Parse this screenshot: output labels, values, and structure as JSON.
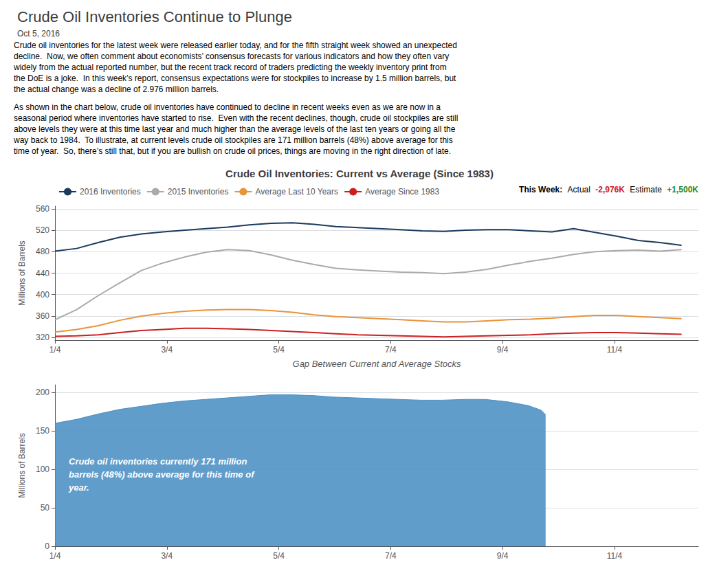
{
  "title": "Crude Oil Inventories Continue to Plunge",
  "subtitle": "Oct 5, 2016",
  "paragraphs": [
    [
      "Crude oil inventories for the latest week were released earlier today, and for the fifth straight week showed an unexpected",
      "decline.  Now, we often comment about economists’ consensus forecasts for various indicators and how they often vary",
      "widely from the actual reported number, but the recent track record of traders predicting the weekly inventory print from",
      "the DoE is a joke.  In this week’s report, consensus expectations were for stockpiles to increase by 1.5 million barrels, but",
      "the actual change was a decline of 2.976 million barrels."
    ],
    [
      "As shown in the chart below, crude oil inventories have continued to decline in recent weeks even as we are now in a",
      "seasonal period where inventories have started to rise.  Even with the recent declines, though, crude oil stockpiles are still",
      "above levels they were at this time last year and much higher than the average levels of the last ten years or going all the",
      "way back to 1984.  To illustrate, at current levels crude oil stockpiles are 171 million barrels (48%) above average for this",
      "time of year.  So, there’s still that, but if you are bullish on crude oil prices, things are moving in the right direction of late."
    ]
  ],
  "chart_data": [
    {
      "type": "line",
      "title": "Crude Oil Inventories: Current vs Average (Since 1983)",
      "xlabel": "Gap Between Current and Average Stocks",
      "ylabel": "Millions of Barrels",
      "x": [
        0,
        0.3862068966,
        0.7724137931,
        1.1586206897,
        1.5448275862,
        1.9310344828,
        2.3172413793,
        2.7034482759,
        3.0896551724,
        3.475862069,
        3.8620689655,
        4.2482758621,
        4.6344827586,
        5.0206896552,
        5.4068965517,
        5.7931034483,
        6.1793103448,
        6.5655172414,
        6.9517241379,
        7.3379310345,
        7.724137931,
        8.1103448276,
        8.4965517241,
        8.8827586207,
        9.2689655172,
        9.6551724138,
        10.0413793103,
        10.4275862069,
        10.8137931034,
        11.2
      ],
      "series": [
        {
          "name": "2016 Inventories",
          "color": "#1b3a5c",
          "values": [
            481,
            486,
            497,
            507,
            513,
            517,
            520,
            523,
            526,
            530,
            533,
            534,
            531,
            527,
            525,
            523,
            521,
            519,
            518,
            520,
            521,
            521,
            519,
            517,
            523,
            516,
            509,
            501,
            497,
            492
          ]
        },
        {
          "name": "2015 Inventories",
          "color": "#aaaaaa",
          "values": [
            353,
            372,
            398,
            422,
            445,
            459,
            470,
            479,
            484,
            482,
            474,
            464,
            456,
            449,
            446,
            444,
            442,
            441,
            439,
            442,
            447,
            455,
            462,
            468,
            475,
            480,
            482,
            483,
            481,
            484
          ]
        },
        {
          "name": "Average Last 10 Years",
          "color": "#e8943a",
          "values": [
            330,
            335,
            342,
            352,
            360,
            365,
            369,
            371,
            372,
            372,
            370,
            367,
            362,
            359,
            357,
            355,
            353,
            351,
            349,
            349,
            351,
            353,
            354,
            356,
            359,
            361,
            361,
            359,
            357,
            355
          ]
        },
        {
          "name": "Average Since 1983",
          "color": "#cc2020",
          "values": [
            322,
            323,
            325,
            329,
            333,
            335,
            337,
            337,
            336,
            335,
            333,
            331,
            329,
            327,
            325,
            324,
            323,
            322,
            321,
            322,
            323,
            324,
            325,
            327,
            328,
            329,
            329,
            328,
            327,
            326
          ]
        }
      ],
      "xlim": [
        0,
        11.5
      ],
      "xticks": [
        {
          "value": 0,
          "label": "1/4"
        },
        {
          "value": 2,
          "label": "3/4"
        },
        {
          "value": 4,
          "label": "5/4"
        },
        {
          "value": 6,
          "label": "7/4"
        },
        {
          "value": 8,
          "label": "9/4"
        },
        {
          "value": 10,
          "label": "11/4"
        }
      ],
      "ylim": [
        315,
        565
      ],
      "yticks": [
        320,
        360,
        400,
        440,
        480,
        520,
        560
      ],
      "grid": true,
      "legend": "top",
      "annotations": [
        {
          "text": "This Week:"
        },
        {
          "text": "Actual"
        },
        {
          "text": "-2,976K",
          "color": "#cc2020"
        },
        {
          "text": "Estimate"
        },
        {
          "text": "+1,500K",
          "color": "#228822"
        }
      ]
    },
    {
      "type": "area",
      "ylabel": "Millions of Barrels",
      "x": [
        0,
        0.38,
        0.77,
        1.15,
        1.54,
        1.92,
        2.31,
        2.69,
        3.08,
        3.46,
        3.85,
        4.23,
        4.62,
        5.0,
        5.38,
        5.77,
        6.15,
        6.54,
        6.92,
        7.31,
        7.69,
        8.08,
        8.46,
        8.69,
        8.77
      ],
      "values": [
        160,
        165,
        172,
        178,
        182,
        186,
        189,
        191,
        193,
        195,
        197,
        197,
        196,
        194,
        193,
        192,
        191,
        190,
        190,
        191,
        191,
        188,
        183,
        177,
        171
      ],
      "color": "#4a90c4",
      "xlim": [
        0,
        11.5
      ],
      "xticks": [
        {
          "value": 0,
          "label": "1/4"
        },
        {
          "value": 2,
          "label": "3/4"
        },
        {
          "value": 4,
          "label": "5/4"
        },
        {
          "value": 6,
          "label": "7/4"
        },
        {
          "value": 8,
          "label": "9/4"
        },
        {
          "value": 10,
          "label": "11/4"
        }
      ],
      "ylim": [
        0,
        210
      ],
      "yticks": [
        0,
        50,
        100,
        150,
        200
      ],
      "grid": true,
      "annotations": [
        {
          "text": "Crude oil inventories currently 171 million\nbarrels (48%) above average for this time of\nyear.",
          "color": "#ffffff"
        }
      ]
    }
  ]
}
